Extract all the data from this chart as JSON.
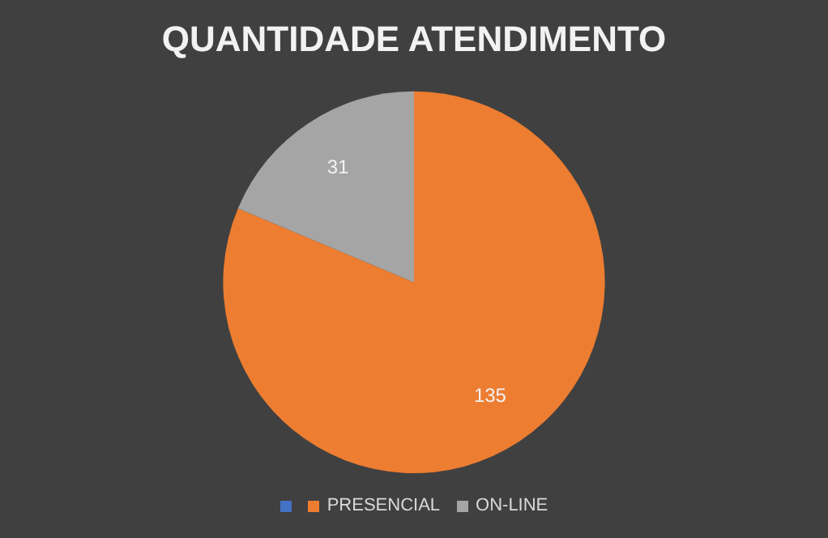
{
  "chart_data": {
    "type": "pie",
    "title": "QUANTIDADE ATENDIMENTO",
    "categories": [
      "PRESENCIAL",
      "ON-LINE"
    ],
    "values": [
      135,
      31
    ],
    "colors": [
      "#ed7d31",
      "#a5a5a5"
    ],
    "data_labels": true,
    "legend": "bottom"
  }
}
